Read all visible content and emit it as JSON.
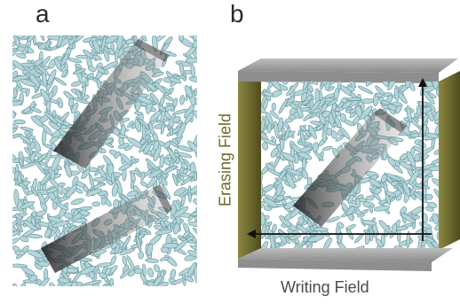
{
  "panels": {
    "a": {
      "label": "a"
    },
    "b": {
      "label": "b"
    }
  },
  "fields": {
    "erasing_label": "Erasing Field",
    "writing_label": "Writing Field"
  },
  "colors": {
    "particle_fill": "#b4d6da",
    "particle_stroke": "#6f9aa0",
    "electrode_top": "#9d9d9d",
    "electrode_side": "#6e6a2e",
    "arrow": "#111111"
  }
}
